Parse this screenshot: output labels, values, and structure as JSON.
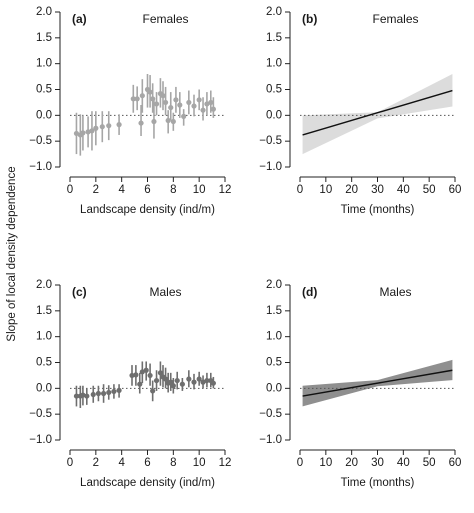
{
  "shared_ylabel": "Slope of local density dependence",
  "colors": {
    "females": "#a6a6a6",
    "males": "#6e6e6e",
    "females_band": "#dcdcdc",
    "males_band": "#8f8f8f",
    "fit_line": "#111111"
  },
  "chart_data": [
    {
      "id": "a",
      "letter": "(a)",
      "title": "Females",
      "type": "scatter",
      "xlabel": "Landscape density (ind/m)",
      "xlim": [
        0,
        12
      ],
      "ylim": [
        -1.0,
        2.0
      ],
      "xticks": [
        0,
        2,
        4,
        6,
        8,
        10,
        12
      ],
      "yticks": [
        -1.0,
        -0.5,
        0.0,
        0.5,
        1.0,
        1.5,
        2.0
      ],
      "ytick_labels": [
        "−1.0",
        "−0.5",
        "0.0",
        "0.5",
        "1.0",
        "1.5",
        "2.0"
      ],
      "reference_line": 0,
      "points": [
        {
          "x": 0.5,
          "y": -0.35,
          "lo": -0.75,
          "hi": 0.05
        },
        {
          "x": 0.8,
          "y": -0.38,
          "lo": -0.78,
          "hi": 0.02
        },
        {
          "x": 1.0,
          "y": -0.34,
          "lo": -0.68,
          "hi": 0.0
        },
        {
          "x": 1.4,
          "y": -0.32,
          "lo": -0.62,
          "hi": -0.02
        },
        {
          "x": 1.7,
          "y": -0.3,
          "lo": -0.68,
          "hi": 0.08
        },
        {
          "x": 2.0,
          "y": -0.25,
          "lo": -0.58,
          "hi": 0.08
        },
        {
          "x": 2.5,
          "y": -0.22,
          "lo": -0.52,
          "hi": 0.08
        },
        {
          "x": 3.0,
          "y": -0.2,
          "lo": -0.48,
          "hi": 0.08
        },
        {
          "x": 3.8,
          "y": -0.18,
          "lo": -0.38,
          "hi": 0.02
        },
        {
          "x": 4.9,
          "y": 0.32,
          "lo": 0.05,
          "hi": 0.59
        },
        {
          "x": 5.2,
          "y": 0.32,
          "lo": 0.1,
          "hi": 0.56
        },
        {
          "x": 5.5,
          "y": -0.15,
          "lo": -0.4,
          "hi": 0.2
        },
        {
          "x": 5.6,
          "y": 0.38,
          "lo": 0.05,
          "hi": 0.7
        },
        {
          "x": 6.0,
          "y": 0.5,
          "lo": 0.15,
          "hi": 0.8
        },
        {
          "x": 6.2,
          "y": 0.45,
          "lo": 0.15,
          "hi": 0.78
        },
        {
          "x": 6.4,
          "y": 0.32,
          "lo": 0.05,
          "hi": 0.62
        },
        {
          "x": 6.5,
          "y": -0.12,
          "lo": -0.45,
          "hi": 0.3
        },
        {
          "x": 6.7,
          "y": 0.22,
          "lo": 0.0,
          "hi": 0.45
        },
        {
          "x": 7.0,
          "y": 0.42,
          "lo": 0.15,
          "hi": 0.72
        },
        {
          "x": 7.2,
          "y": 0.38,
          "lo": 0.1,
          "hi": 0.66
        },
        {
          "x": 7.4,
          "y": 0.25,
          "lo": 0.0,
          "hi": 0.55
        },
        {
          "x": 7.6,
          "y": -0.1,
          "lo": -0.35,
          "hi": 0.1
        },
        {
          "x": 7.8,
          "y": 0.15,
          "lo": -0.1,
          "hi": 0.45
        },
        {
          "x": 8.0,
          "y": -0.12,
          "lo": -0.3,
          "hi": 0.05
        },
        {
          "x": 8.2,
          "y": 0.3,
          "lo": 0.05,
          "hi": 0.55
        },
        {
          "x": 8.5,
          "y": 0.2,
          "lo": -0.05,
          "hi": 0.45
        },
        {
          "x": 8.8,
          "y": -0.02,
          "lo": -0.2,
          "hi": 0.12
        },
        {
          "x": 9.2,
          "y": 0.25,
          "lo": 0.02,
          "hi": 0.48
        },
        {
          "x": 9.6,
          "y": 0.18,
          "lo": -0.02,
          "hi": 0.4
        },
        {
          "x": 10.0,
          "y": 0.3,
          "lo": 0.1,
          "hi": 0.5
        },
        {
          "x": 10.3,
          "y": 0.1,
          "lo": -0.1,
          "hi": 0.35
        },
        {
          "x": 10.6,
          "y": 0.22,
          "lo": 0.0,
          "hi": 0.45
        },
        {
          "x": 10.9,
          "y": 0.25,
          "lo": 0.05,
          "hi": 0.48
        },
        {
          "x": 11.1,
          "y": 0.12,
          "lo": -0.05,
          "hi": 0.35
        }
      ]
    },
    {
      "id": "b",
      "letter": "(b)",
      "title": "Females",
      "type": "line",
      "xlabel": "Time (months)",
      "xlim": [
        0,
        60
      ],
      "ylim": [
        -1.0,
        2.0
      ],
      "xticks": [
        0,
        10,
        20,
        30,
        40,
        50,
        60
      ],
      "yticks": [
        -1.0,
        -0.5,
        0.0,
        0.5,
        1.0,
        1.5,
        2.0
      ],
      "ytick_labels": [
        "−1.0",
        "−0.5",
        "0.0",
        "0.5",
        "1.0",
        "1.5",
        "2.0"
      ],
      "reference_line": 0,
      "fit": {
        "x": [
          1,
          59
        ],
        "y": [
          -0.38,
          0.48
        ]
      },
      "band": {
        "x": [
          1,
          30,
          59
        ],
        "lo": [
          -0.75,
          -0.06,
          0.17
        ],
        "hi": [
          0.0,
          0.06,
          0.8
        ]
      }
    },
    {
      "id": "c",
      "letter": "(c)",
      "title": "Males",
      "type": "scatter",
      "xlabel": "Landscape density (ind/m)",
      "xlim": [
        0,
        12
      ],
      "ylim": [
        -1.0,
        2.0
      ],
      "xticks": [
        0,
        2,
        4,
        6,
        8,
        10,
        12
      ],
      "yticks": [
        -1.0,
        -0.5,
        0.0,
        0.5,
        1.0,
        1.5,
        2.0
      ],
      "ytick_labels": [
        "−1.0",
        "−0.5",
        "0.0",
        "0.5",
        "1.0",
        "1.5",
        "2.0"
      ],
      "reference_line": 0,
      "points": [
        {
          "x": 0.5,
          "y": -0.15,
          "lo": -0.35,
          "hi": 0.05
        },
        {
          "x": 0.8,
          "y": -0.15,
          "lo": -0.38,
          "hi": 0.05
        },
        {
          "x": 1.0,
          "y": -0.13,
          "lo": -0.33,
          "hi": 0.05
        },
        {
          "x": 1.3,
          "y": -0.15,
          "lo": -0.32,
          "hi": 0.0
        },
        {
          "x": 1.8,
          "y": -0.12,
          "lo": -0.28,
          "hi": 0.05
        },
        {
          "x": 2.2,
          "y": -0.1,
          "lo": -0.25,
          "hi": 0.05
        },
        {
          "x": 2.6,
          "y": -0.1,
          "lo": -0.28,
          "hi": 0.08
        },
        {
          "x": 3.0,
          "y": -0.08,
          "lo": -0.22,
          "hi": 0.06
        },
        {
          "x": 3.4,
          "y": -0.06,
          "lo": -0.2,
          "hi": 0.08
        },
        {
          "x": 3.8,
          "y": -0.04,
          "lo": -0.18,
          "hi": 0.08
        },
        {
          "x": 4.8,
          "y": 0.25,
          "lo": 0.05,
          "hi": 0.45
        },
        {
          "x": 5.1,
          "y": 0.26,
          "lo": 0.05,
          "hi": 0.45
        },
        {
          "x": 5.4,
          "y": 0.08,
          "lo": -0.1,
          "hi": 0.3
        },
        {
          "x": 5.6,
          "y": 0.32,
          "lo": 0.1,
          "hi": 0.52
        },
        {
          "x": 5.9,
          "y": 0.35,
          "lo": 0.15,
          "hi": 0.52
        },
        {
          "x": 6.2,
          "y": 0.25,
          "lo": 0.05,
          "hi": 0.48
        },
        {
          "x": 6.4,
          "y": -0.05,
          "lo": -0.25,
          "hi": 0.15
        },
        {
          "x": 6.7,
          "y": 0.15,
          "lo": -0.05,
          "hi": 0.35
        },
        {
          "x": 7.0,
          "y": 0.3,
          "lo": 0.05,
          "hi": 0.52
        },
        {
          "x": 7.2,
          "y": 0.22,
          "lo": 0.02,
          "hi": 0.45
        },
        {
          "x": 7.4,
          "y": 0.18,
          "lo": 0.0,
          "hi": 0.4
        },
        {
          "x": 7.6,
          "y": 0.1,
          "lo": -0.08,
          "hi": 0.3
        },
        {
          "x": 7.8,
          "y": 0.12,
          "lo": -0.05,
          "hi": 0.3
        },
        {
          "x": 8.0,
          "y": 0.05,
          "lo": -0.1,
          "hi": 0.2
        },
        {
          "x": 8.3,
          "y": 0.15,
          "lo": -0.02,
          "hi": 0.32
        },
        {
          "x": 8.7,
          "y": 0.08,
          "lo": -0.05,
          "hi": 0.2
        },
        {
          "x": 9.2,
          "y": 0.18,
          "lo": 0.02,
          "hi": 0.35
        },
        {
          "x": 9.6,
          "y": 0.12,
          "lo": -0.02,
          "hi": 0.28
        },
        {
          "x": 10.0,
          "y": 0.18,
          "lo": 0.05,
          "hi": 0.32
        },
        {
          "x": 10.3,
          "y": 0.12,
          "lo": 0.0,
          "hi": 0.25
        },
        {
          "x": 10.6,
          "y": 0.15,
          "lo": 0.02,
          "hi": 0.3
        },
        {
          "x": 10.9,
          "y": 0.15,
          "lo": 0.02,
          "hi": 0.3
        },
        {
          "x": 11.1,
          "y": 0.1,
          "lo": 0.0,
          "hi": 0.22
        }
      ]
    },
    {
      "id": "d",
      "letter": "(d)",
      "title": "Males",
      "type": "line",
      "xlabel": "Time (months)",
      "xlim": [
        0,
        60
      ],
      "ylim": [
        -1.0,
        2.0
      ],
      "xticks": [
        0,
        10,
        20,
        30,
        40,
        50,
        60
      ],
      "yticks": [
        -1.0,
        -0.5,
        0.0,
        0.5,
        1.0,
        1.5,
        2.0
      ],
      "ytick_labels": [
        "−1.0",
        "−0.5",
        "0.0",
        "0.5",
        "1.0",
        "1.5",
        "2.0"
      ],
      "reference_line": 0,
      "fit": {
        "x": [
          1,
          59
        ],
        "y": [
          -0.15,
          0.35
        ]
      },
      "band": {
        "x": [
          1,
          30,
          59
        ],
        "lo": [
          -0.35,
          0.04,
          0.16
        ],
        "hi": [
          0.05,
          0.16,
          0.55
        ]
      }
    }
  ]
}
